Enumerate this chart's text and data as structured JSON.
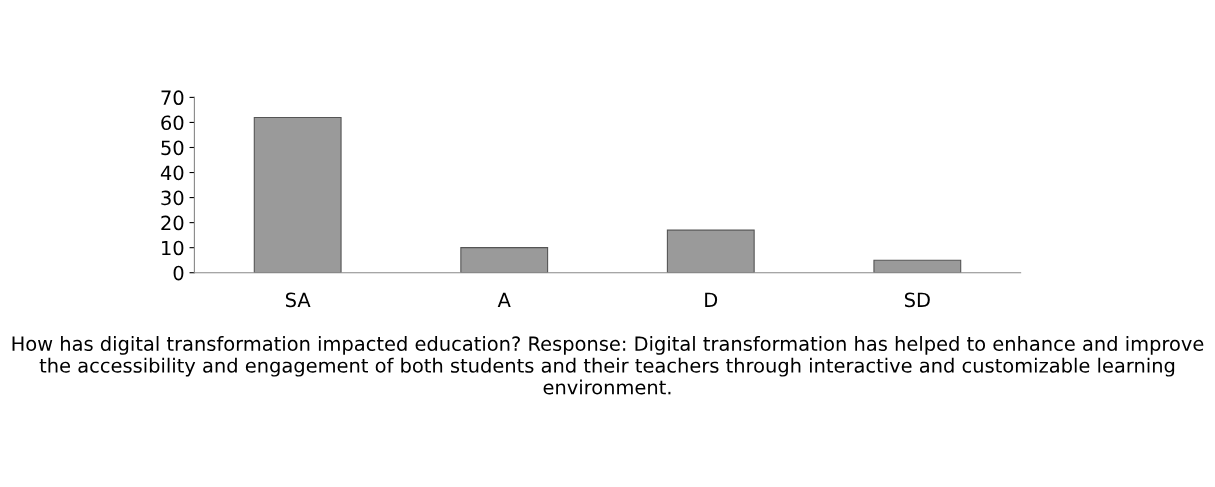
{
  "chart_data": {
    "type": "bar",
    "xlabel": "How has digital transformation impacted education? Response: Digital transformation has helped to enhance and improve the accessibility and engagement of both students and their teachers through interactive and customizable learning environment.",
    "categories": [
      "SA",
      "A",
      "D",
      "SD"
    ],
    "values": [
      62,
      10,
      17,
      5
    ],
    "color": "#9a9a9a",
    "ylim": [
      0,
      70
    ],
    "yticks": [
      0,
      10,
      20,
      30,
      40,
      50,
      60,
      70
    ],
    "grid": false,
    "legend": false
  }
}
